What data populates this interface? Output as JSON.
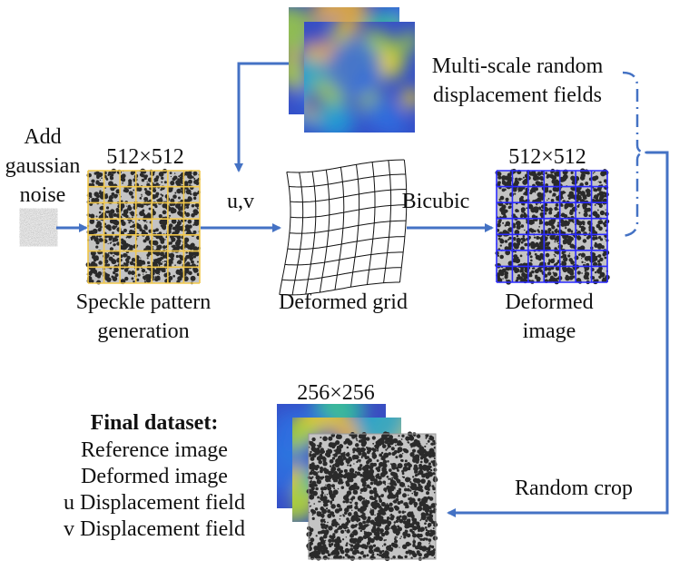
{
  "noise": {
    "lines": [
      "Add",
      "gaussian",
      "noise"
    ]
  },
  "speckle": {
    "size": "512×512",
    "caption": [
      "Speckle pattern",
      "generation"
    ],
    "grid_color": "#f2c84b"
  },
  "uv_label": "u,v",
  "fields": {
    "caption": [
      "Multi-scale random",
      "displacement fields"
    ]
  },
  "deformed_grid": {
    "caption": "Deformed grid"
  },
  "bicubic_label": "Bicubic",
  "deformed_image": {
    "size": "512×512",
    "caption": [
      "Deformed",
      "image"
    ],
    "grid_color": "#2b2bff"
  },
  "random_crop_label": "Random crop",
  "crop": {
    "size": "256×256"
  },
  "final_dataset": {
    "title": "Final dataset:",
    "items": [
      "Reference image",
      "Deformed image",
      "u Displacement field",
      "v Displacement field"
    ]
  },
  "colors": {
    "arrow": "#4472c4",
    "field_low": "#3b4cc0",
    "field_high": "#f5d21c"
  }
}
